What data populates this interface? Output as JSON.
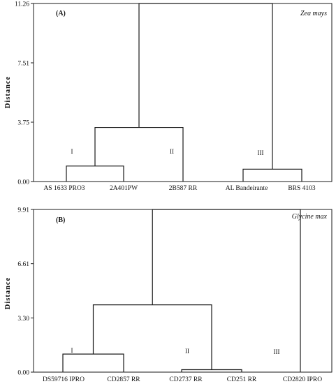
{
  "chart_data": [
    {
      "type": "dendrogram",
      "panel_label": "(A)",
      "species": "Zea mays",
      "ylabel": "Distance",
      "ylim": [
        0,
        11.26
      ],
      "yticks": [
        "0.00",
        "3.75",
        "7.51",
        "11.26"
      ],
      "leaves": [
        "AS 1633 PRO3",
        "2A401PW",
        "2B587 RR",
        "AL Bandeirante",
        "BRS 4103"
      ],
      "merges": [
        {
          "left": [
            0
          ],
          "right": [
            1
          ],
          "height": 0.98
        },
        {
          "left": [
            3
          ],
          "right": [
            4
          ],
          "height": 0.78
        },
        {
          "left": [
            0,
            1
          ],
          "right": [
            2
          ],
          "height": 3.42
        },
        {
          "left": [
            0,
            1,
            2
          ],
          "right": [
            3,
            4
          ],
          "height": 11.26
        }
      ],
      "groups": [
        {
          "label": "I",
          "leaves": [
            0,
            1
          ]
        },
        {
          "label": "II",
          "leaves": [
            2
          ]
        },
        {
          "label": "III",
          "leaves": [
            3,
            4
          ]
        }
      ]
    },
    {
      "type": "dendrogram",
      "panel_label": "(B)",
      "species": "Glycine max",
      "ylabel": "Distance",
      "ylim": [
        0,
        9.91
      ],
      "yticks": [
        "0.00",
        "3.30",
        "6.61",
        "9.91"
      ],
      "leaves": [
        "DS59716  IPRO",
        "CD2857 RR",
        "CD2737 RR",
        "CD251 RR",
        "CD2820 IPRO"
      ],
      "merges": [
        {
          "left": [
            0
          ],
          "right": [
            1
          ],
          "height": 1.1
        },
        {
          "left": [
            2
          ],
          "right": [
            3
          ],
          "height": 0.15
        },
        {
          "left": [
            0,
            1
          ],
          "right": [
            2,
            3
          ],
          "height": 4.1
        },
        {
          "left": [
            0,
            1,
            2,
            3
          ],
          "right": [
            4
          ],
          "height": 9.91
        }
      ],
      "groups": [
        {
          "label": "I",
          "leaves": [
            0,
            1
          ]
        },
        {
          "label": "II",
          "leaves": [
            2,
            3
          ]
        },
        {
          "label": "III",
          "leaves": [
            4
          ]
        }
      ]
    }
  ]
}
